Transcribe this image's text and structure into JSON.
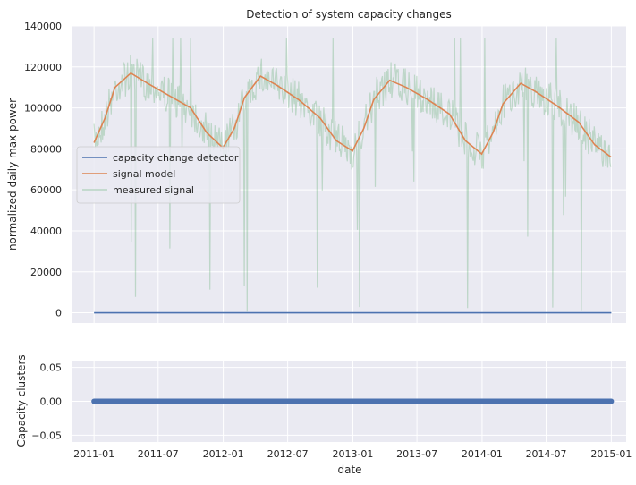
{
  "chart_data": [
    {
      "type": "line",
      "title": "Detection of system capacity changes",
      "xlabel": "",
      "ylabel": "normalized daily max power",
      "ylim": [
        -5000,
        140000
      ],
      "yticks": [
        0,
        20000,
        40000,
        60000,
        80000,
        100000,
        120000,
        140000
      ],
      "x_range": [
        "2010-11-01",
        "2015-02-12"
      ],
      "xticks": [
        "2011-01",
        "2011-07",
        "2012-01",
        "2012-07",
        "2013-01",
        "2013-07",
        "2014-01",
        "2014-07",
        "2015-01"
      ],
      "grid": true,
      "legend": "center-left",
      "series": [
        {
          "name": "capacity change detector",
          "color": "#4c72b0",
          "points": [
            [
              "2011-01-01",
              0
            ],
            [
              "2015-01-01",
              0
            ]
          ]
        },
        {
          "name": "signal model",
          "color": "#dd8452",
          "points": [
            [
              "2011-01-01",
              83000
            ],
            [
              "2011-02-01",
              95000
            ],
            [
              "2011-03-01",
              110000
            ],
            [
              "2011-04-15",
              117000
            ],
            [
              "2011-06-01",
              112000
            ],
            [
              "2011-08-01",
              106000
            ],
            [
              "2011-10-01",
              100000
            ],
            [
              "2011-11-15",
              88000
            ],
            [
              "2011-12-31",
              80500
            ],
            [
              "2012-02-01",
              90000
            ],
            [
              "2012-03-01",
              105000
            ],
            [
              "2012-04-15",
              115500
            ],
            [
              "2012-06-01",
              111000
            ],
            [
              "2012-08-01",
              104000
            ],
            [
              "2012-10-01",
              95000
            ],
            [
              "2012-11-15",
              84000
            ],
            [
              "2012-12-31",
              79000
            ],
            [
              "2013-02-01",
              90000
            ],
            [
              "2013-03-01",
              104000
            ],
            [
              "2013-04-15",
              113500
            ],
            [
              "2013-06-01",
              110000
            ],
            [
              "2013-08-01",
              104000
            ],
            [
              "2013-10-01",
              97000
            ],
            [
              "2013-11-15",
              84000
            ],
            [
              "2013-12-31",
              77500
            ],
            [
              "2014-02-01",
              88000
            ],
            [
              "2014-03-01",
              102000
            ],
            [
              "2014-04-20",
              112000
            ],
            [
              "2014-06-01",
              108000
            ],
            [
              "2014-08-01",
              101000
            ],
            [
              "2014-10-01",
              93000
            ],
            [
              "2014-11-15",
              82000
            ],
            [
              "2014-12-31",
              76000
            ]
          ]
        },
        {
          "name": "measured signal",
          "color": "#55a868",
          "style": "noisy band around signal model, daily values roughly 40000-134000 with occasional dropouts near 0"
        }
      ]
    },
    {
      "type": "scatter",
      "title": "",
      "xlabel": "date",
      "ylabel": "Capacity clusters",
      "ylim": [
        -0.06,
        0.06
      ],
      "yticks": [
        -0.05,
        0.0,
        0.05
      ],
      "ytick_labels": [
        "−0.05",
        "0.00",
        "0.05"
      ],
      "x_range": [
        "2011-01-01",
        "2015-01-01"
      ],
      "value": 0,
      "color": "#4c72b0",
      "grid": true
    }
  ]
}
